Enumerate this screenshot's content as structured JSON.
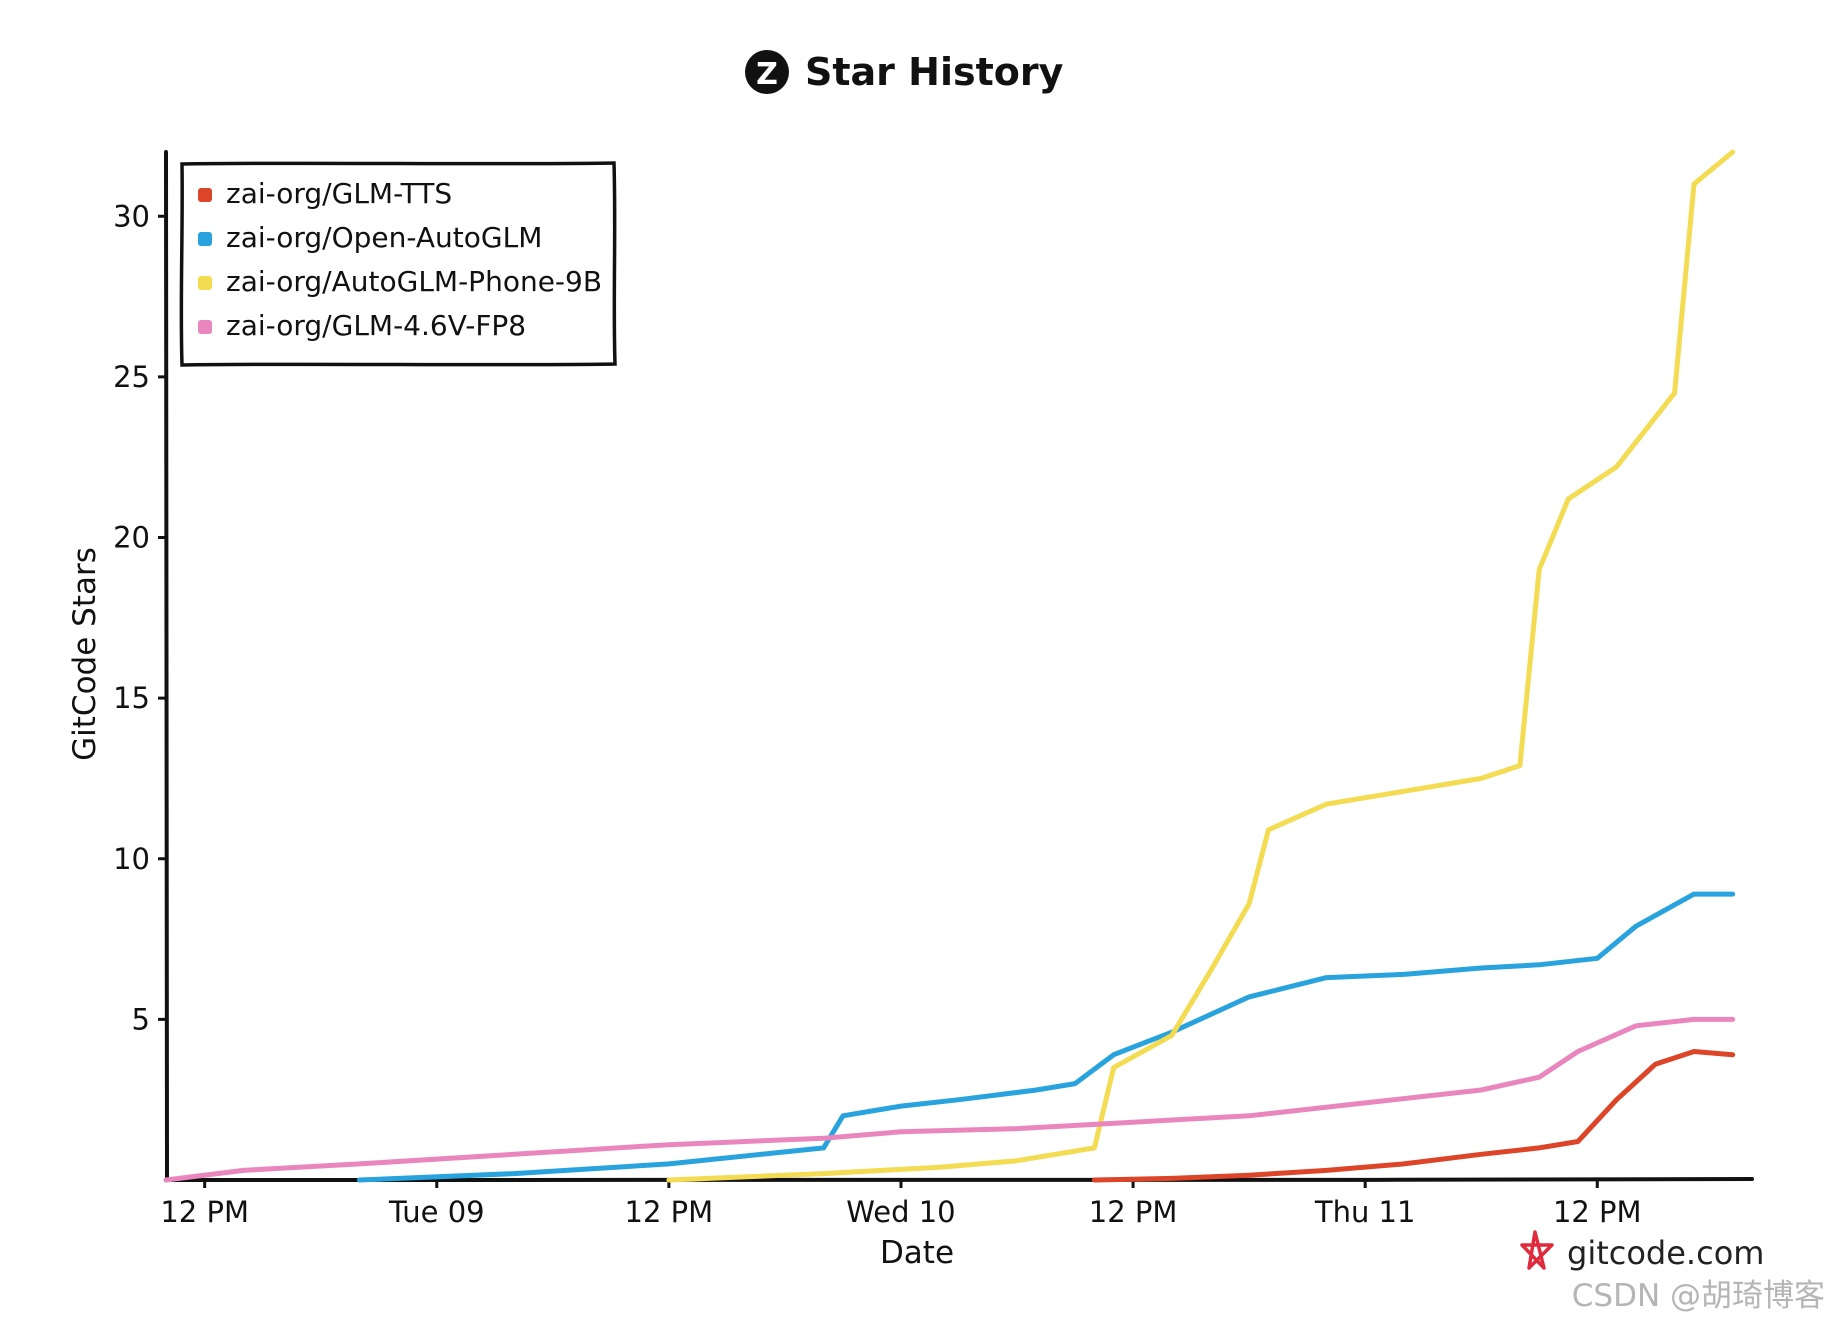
{
  "chart_data": {
    "type": "line",
    "title": "Star History",
    "xlabel": "Date",
    "ylabel": "GitCode Stars",
    "ylim": [
      0,
      32
    ],
    "yticks": [
      5,
      10,
      15,
      20,
      25,
      30
    ],
    "xlim": [
      "2025-12-08T10:00",
      "2025-12-11T20:00"
    ],
    "xticks": [
      {
        "label": "12 PM",
        "x": "2025-12-08T12:00"
      },
      {
        "label": "Tue 09",
        "x": "2025-12-09T00:00"
      },
      {
        "label": "12 PM",
        "x": "2025-12-09T12:00"
      },
      {
        "label": "Wed 10",
        "x": "2025-12-10T00:00"
      },
      {
        "label": "12 PM",
        "x": "2025-12-10T12:00"
      },
      {
        "label": "Thu 11",
        "x": "2025-12-11T00:00"
      },
      {
        "label": "12 PM",
        "x": "2025-12-11T12:00"
      }
    ],
    "legend_position": "top-left",
    "grid": false,
    "series": [
      {
        "name": "zai-org/GLM-TTS",
        "color": "#dd4528",
        "points": [
          [
            "2025-12-10T10:00",
            0
          ],
          [
            "2025-12-10T14:00",
            0.05
          ],
          [
            "2025-12-10T18:00",
            0.15
          ],
          [
            "2025-12-10T22:00",
            0.3
          ],
          [
            "2025-12-11T02:00",
            0.5
          ],
          [
            "2025-12-11T06:00",
            0.8
          ],
          [
            "2025-12-11T09:00",
            1.0
          ],
          [
            "2025-12-11T11:00",
            1.2
          ],
          [
            "2025-12-11T13:00",
            2.5
          ],
          [
            "2025-12-11T15:00",
            3.6
          ],
          [
            "2025-12-11T17:00",
            4.0
          ],
          [
            "2025-12-11T19:00",
            3.9
          ]
        ]
      },
      {
        "name": "zai-org/Open-AutoGLM",
        "color": "#28a3dd",
        "points": [
          [
            "2025-12-08T20:00",
            0
          ],
          [
            "2025-12-09T04:00",
            0.2
          ],
          [
            "2025-12-09T12:00",
            0.5
          ],
          [
            "2025-12-09T20:00",
            1.0
          ],
          [
            "2025-12-09T21:00",
            2.0
          ],
          [
            "2025-12-10T00:00",
            2.3
          ],
          [
            "2025-12-10T03:00",
            2.5
          ],
          [
            "2025-12-10T07:00",
            2.8
          ],
          [
            "2025-12-10T09:00",
            3.0
          ],
          [
            "2025-12-10T11:00",
            3.9
          ],
          [
            "2025-12-10T14:00",
            4.6
          ],
          [
            "2025-12-10T18:00",
            5.7
          ],
          [
            "2025-12-10T22:00",
            6.3
          ],
          [
            "2025-12-11T02:00",
            6.4
          ],
          [
            "2025-12-11T06:00",
            6.6
          ],
          [
            "2025-12-11T09:00",
            6.7
          ],
          [
            "2025-12-11T12:00",
            6.9
          ],
          [
            "2025-12-11T14:00",
            7.9
          ],
          [
            "2025-12-11T17:00",
            8.9
          ],
          [
            "2025-12-11T19:00",
            8.9
          ]
        ]
      },
      {
        "name": "zai-org/AutoGLM-Phone-9B",
        "color": "#f3db52",
        "points": [
          [
            "2025-12-09T12:00",
            0
          ],
          [
            "2025-12-09T20:00",
            0.2
          ],
          [
            "2025-12-10T02:00",
            0.4
          ],
          [
            "2025-12-10T06:00",
            0.6
          ],
          [
            "2025-12-10T10:00",
            1.0
          ],
          [
            "2025-12-10T11:00",
            3.5
          ],
          [
            "2025-12-10T14:00",
            4.5
          ],
          [
            "2025-12-10T16:00",
            6.5
          ],
          [
            "2025-12-10T18:00",
            8.6
          ],
          [
            "2025-12-10T19:00",
            10.9
          ],
          [
            "2025-12-10T22:00",
            11.7
          ],
          [
            "2025-12-11T02:00",
            12.1
          ],
          [
            "2025-12-11T06:00",
            12.5
          ],
          [
            "2025-12-11T08:00",
            12.9
          ],
          [
            "2025-12-11T09:00",
            19.0
          ],
          [
            "2025-12-11T10:30",
            21.2
          ],
          [
            "2025-12-11T13:00",
            22.2
          ],
          [
            "2025-12-11T16:00",
            24.5
          ],
          [
            "2025-12-11T17:00",
            31.0
          ],
          [
            "2025-12-11T19:00",
            32.0
          ]
        ]
      },
      {
        "name": "zai-org/GLM-4.6V-FP8",
        "color": "#ea86be",
        "points": [
          [
            "2025-12-08T10:00",
            0
          ],
          [
            "2025-12-08T14:00",
            0.3
          ],
          [
            "2025-12-08T20:00",
            0.5
          ],
          [
            "2025-12-09T04:00",
            0.8
          ],
          [
            "2025-12-09T12:00",
            1.1
          ],
          [
            "2025-12-09T20:00",
            1.3
          ],
          [
            "2025-12-10T00:00",
            1.5
          ],
          [
            "2025-12-10T06:00",
            1.6
          ],
          [
            "2025-12-10T12:00",
            1.8
          ],
          [
            "2025-12-10T18:00",
            2.0
          ],
          [
            "2025-12-11T00:00",
            2.4
          ],
          [
            "2025-12-11T06:00",
            2.8
          ],
          [
            "2025-12-11T09:00",
            3.2
          ],
          [
            "2025-12-11T11:00",
            4.0
          ],
          [
            "2025-12-11T14:00",
            4.8
          ],
          [
            "2025-12-11T17:00",
            5.0
          ],
          [
            "2025-12-11T19:00",
            5.0
          ]
        ]
      }
    ]
  },
  "brand": {
    "logo_letter": "Z",
    "site": "gitcode.com",
    "site_icon": "gitcode-star-icon"
  },
  "watermark": "CSDN @胡琦博客"
}
